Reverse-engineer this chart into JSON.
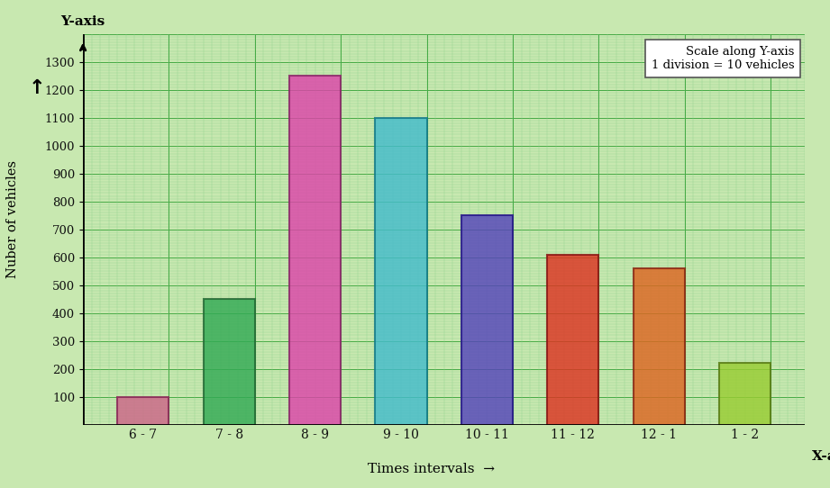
{
  "categories": [
    "6 - 7",
    "7 - 8",
    "8 - 9",
    "9 - 10",
    "10 - 11",
    "11 - 12",
    "12 - 1",
    "1 - 2"
  ],
  "values": [
    100,
    450,
    1250,
    1100,
    750,
    610,
    560,
    220
  ],
  "bar_colors": [
    "#cc6688",
    "#33aa55",
    "#dd44aa",
    "#44bbcc",
    "#5544bb",
    "#dd3322",
    "#dd6622",
    "#99cc33"
  ],
  "bar_edge_colors": [
    "#882255",
    "#226633",
    "#882266",
    "#117788",
    "#221188",
    "#881111",
    "#882211",
    "#557711"
  ],
  "background_color": "#c8e8b0",
  "grid_minor_color": "#88cc88",
  "grid_major_color": "#44aa44",
  "ylabel": "Nuber of vehicles",
  "xlabel": "Times intervals",
  "ylabel_top": "Y-axis",
  "xlabel_right": "X-axis",
  "annotation": "Scale along Y-axis\n1 division = 10 vehicles",
  "yticks": [
    100,
    200,
    300,
    400,
    500,
    600,
    700,
    800,
    900,
    1000,
    1100,
    1200,
    1300
  ],
  "ylim": [
    0,
    1400
  ],
  "bar_width": 0.6
}
